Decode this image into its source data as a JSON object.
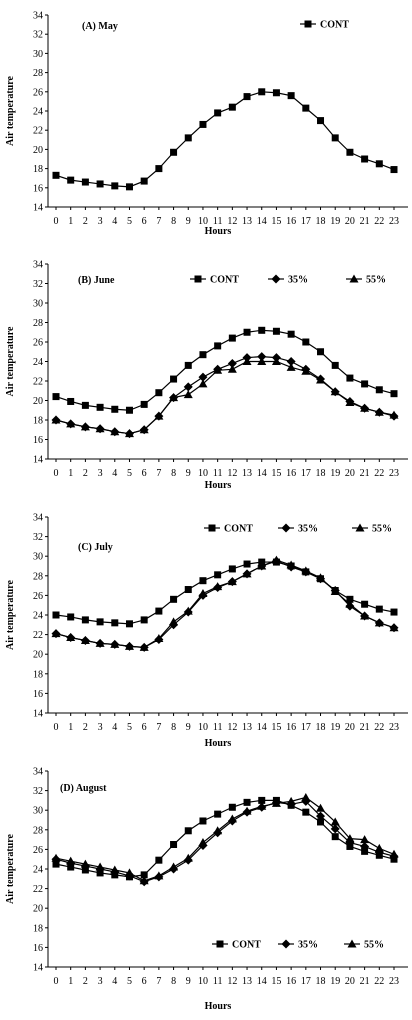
{
  "chart_data": [
    {
      "type": "line",
      "title": "(A) May",
      "xlabel": "Hours",
      "ylabel": "Air temperature",
      "xlim": [
        0,
        23
      ],
      "ylim": [
        14,
        34
      ],
      "x_ticks": [
        "0",
        "1",
        "2",
        "3",
        "4",
        "5",
        "6",
        "7",
        "8",
        "9",
        "10",
        "11",
        "12",
        "13",
        "14",
        "15",
        "16",
        "17",
        "18",
        "19",
        "20",
        "21",
        "22",
        "23"
      ],
      "y_ticks": [
        "14",
        "16",
        "18",
        "20",
        "22",
        "24",
        "26",
        "28",
        "30",
        "32",
        "34"
      ],
      "grid": false,
      "legend": "top-right",
      "series": [
        {
          "name": "CONT",
          "marker": "square",
          "values": [
            17.3,
            16.8,
            16.6,
            16.4,
            16.2,
            16.1,
            16.7,
            18.0,
            19.7,
            21.2,
            22.6,
            23.8,
            24.4,
            25.5,
            26.0,
            25.9,
            25.6,
            24.3,
            23.0,
            21.2,
            19.7,
            19.0,
            18.5,
            17.9
          ]
        }
      ]
    },
    {
      "type": "line",
      "title": "(B) June",
      "xlabel": "Hours",
      "ylabel": "Air temperature",
      "xlim": [
        0,
        23
      ],
      "ylim": [
        14,
        34
      ],
      "x_ticks": [
        "0",
        "1",
        "2",
        "3",
        "4",
        "5",
        "6",
        "7",
        "8",
        "9",
        "10",
        "11",
        "12",
        "13",
        "14",
        "15",
        "16",
        "17",
        "18",
        "19",
        "20",
        "21",
        "22",
        "23"
      ],
      "y_ticks": [
        "14",
        "16",
        "18",
        "20",
        "22",
        "24",
        "26",
        "28",
        "30",
        "32",
        "34"
      ],
      "grid": false,
      "legend": "top-right",
      "series": [
        {
          "name": "CONT",
          "marker": "square",
          "values": [
            20.4,
            19.9,
            19.5,
            19.3,
            19.1,
            19.0,
            19.6,
            20.8,
            22.2,
            23.6,
            24.7,
            25.6,
            26.4,
            27.0,
            27.2,
            27.1,
            26.8,
            26.0,
            25.0,
            23.6,
            22.3,
            21.7,
            21.1,
            20.7
          ]
        },
        {
          "name": "35%",
          "marker": "diamond",
          "values": [
            18.0,
            17.6,
            17.3,
            17.1,
            16.8,
            16.6,
            17.0,
            18.4,
            20.3,
            21.4,
            22.4,
            23.2,
            23.8,
            24.4,
            24.5,
            24.4,
            24.0,
            23.2,
            22.2,
            20.9,
            19.9,
            19.2,
            18.8,
            18.4
          ]
        },
        {
          "name": "55%",
          "marker": "triangle",
          "values": [
            18.0,
            17.6,
            17.3,
            17.1,
            16.8,
            16.6,
            17.0,
            18.4,
            20.3,
            20.6,
            21.7,
            23.1,
            23.2,
            24.0,
            24.0,
            24.0,
            23.4,
            23.0,
            22.1,
            20.9,
            19.8,
            19.2,
            18.8,
            18.5
          ]
        }
      ]
    },
    {
      "type": "line",
      "title": "(C) July",
      "xlabel": "Hours",
      "ylabel": "Air temperature",
      "xlim": [
        0,
        23
      ],
      "ylim": [
        14,
        34
      ],
      "x_ticks": [
        "0",
        "1",
        "2",
        "3",
        "4",
        "5",
        "6",
        "7",
        "8",
        "9",
        "10",
        "11",
        "12",
        "13",
        "14",
        "15",
        "16",
        "17",
        "18",
        "19",
        "20",
        "21",
        "22",
        "23"
      ],
      "y_ticks": [
        "14",
        "16",
        "18",
        "20",
        "22",
        "24",
        "26",
        "28",
        "30",
        "32",
        "34"
      ],
      "grid": false,
      "legend": "top-right",
      "series": [
        {
          "name": "CONT",
          "marker": "square",
          "values": [
            24.0,
            23.8,
            23.5,
            23.3,
            23.2,
            23.1,
            23.5,
            24.4,
            25.6,
            26.6,
            27.5,
            28.1,
            28.7,
            29.2,
            29.4,
            29.4,
            29.0,
            28.4,
            27.7,
            26.5,
            25.6,
            25.1,
            24.6,
            24.3
          ]
        },
        {
          "name": "35%",
          "marker": "diamond",
          "values": [
            22.1,
            21.7,
            21.4,
            21.1,
            21.0,
            20.8,
            20.7,
            21.5,
            23.0,
            24.3,
            26.0,
            26.8,
            27.4,
            28.2,
            29.0,
            29.5,
            28.9,
            28.4,
            27.7,
            26.5,
            24.9,
            23.9,
            23.2,
            22.7
          ]
        },
        {
          "name": "55%",
          "marker": "triangle",
          "values": [
            22.1,
            21.7,
            21.4,
            21.1,
            21.0,
            20.8,
            20.7,
            21.6,
            23.3,
            24.4,
            26.2,
            26.9,
            27.4,
            28.2,
            29.0,
            29.6,
            29.1,
            28.5,
            27.8,
            26.4,
            25.1,
            23.9,
            23.2,
            22.7
          ]
        }
      ]
    },
    {
      "type": "line",
      "title": "(D) August",
      "xlabel": "Hours",
      "ylabel": "Air temperature",
      "xlim": [
        0,
        23
      ],
      "ylim": [
        14,
        34
      ],
      "x_ticks": [
        "0",
        "1",
        "2",
        "3",
        "4",
        "5",
        "6",
        "7",
        "8",
        "9",
        "10",
        "11",
        "12",
        "13",
        "14",
        "15",
        "16",
        "17",
        "18",
        "19",
        "20",
        "21",
        "22",
        "23"
      ],
      "y_ticks": [
        "14",
        "16",
        "18",
        "20",
        "22",
        "24",
        "26",
        "28",
        "30",
        "32",
        "34"
      ],
      "grid": false,
      "legend": "bottom-right",
      "series": [
        {
          "name": "CONT",
          "marker": "square",
          "values": [
            24.5,
            24.2,
            23.9,
            23.6,
            23.4,
            23.2,
            23.4,
            24.9,
            26.5,
            27.9,
            28.9,
            29.6,
            30.3,
            30.8,
            31.0,
            31.0,
            30.5,
            29.8,
            28.8,
            27.3,
            26.3,
            25.8,
            25.4,
            25.0
          ]
        },
        {
          "name": "35%",
          "marker": "diamond",
          "values": [
            25.0,
            24.6,
            24.3,
            24.0,
            23.7,
            23.3,
            22.7,
            23.2,
            24.0,
            24.9,
            26.4,
            27.7,
            28.9,
            29.8,
            30.3,
            30.8,
            30.6,
            30.9,
            29.4,
            28.1,
            26.7,
            26.3,
            25.7,
            25.3
          ]
        },
        {
          "name": "55%",
          "marker": "triangle",
          "values": [
            25.1,
            24.8,
            24.5,
            24.2,
            23.9,
            23.6,
            22.8,
            23.3,
            24.2,
            25.1,
            26.7,
            27.9,
            29.1,
            29.9,
            30.4,
            30.7,
            30.9,
            31.3,
            30.2,
            28.8,
            27.1,
            27.0,
            26.1,
            25.5
          ]
        }
      ]
    }
  ]
}
